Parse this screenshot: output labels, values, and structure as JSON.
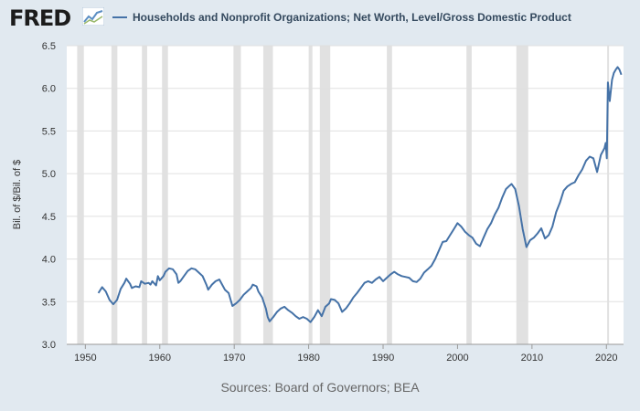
{
  "header": {
    "logo_text": "FRED",
    "logo_icon": "chart-line-icon"
  },
  "chart_data": {
    "type": "line",
    "title": "Households and Nonprofit Organizations; Net Worth, Level/Gross Domestic Product",
    "ylabel": "Bil. of $/Bil. of $",
    "xlabel": "",
    "xlim": [
      1947.5,
      2022.3
    ],
    "ylim": [
      3.0,
      6.5
    ],
    "y_ticks": [
      "3.0",
      "3.5",
      "4.0",
      "4.5",
      "5.0",
      "5.5",
      "6.0",
      "6.5"
    ],
    "x_ticks": [
      "1950",
      "1960",
      "1970",
      "1980",
      "1990",
      "2000",
      "2010",
      "2020"
    ],
    "grid": true,
    "legend_position": "top",
    "series": [
      {
        "name": "Households and Nonprofit Organizations; Net Worth, Level/Gross Domestic Product",
        "color": "#4572a7",
        "points": [
          [
            1951.75,
            3.6
          ],
          [
            1952.25,
            3.67
          ],
          [
            1952.75,
            3.62
          ],
          [
            1953.25,
            3.52
          ],
          [
            1953.75,
            3.47
          ],
          [
            1954.25,
            3.52
          ],
          [
            1954.75,
            3.65
          ],
          [
            1955.25,
            3.72
          ],
          [
            1955.5,
            3.77
          ],
          [
            1956.0,
            3.71
          ],
          [
            1956.25,
            3.66
          ],
          [
            1956.75,
            3.68
          ],
          [
            1957.25,
            3.67
          ],
          [
            1957.5,
            3.74
          ],
          [
            1958.0,
            3.71
          ],
          [
            1958.5,
            3.72
          ],
          [
            1958.75,
            3.7
          ],
          [
            1959.0,
            3.74
          ],
          [
            1959.5,
            3.69
          ],
          [
            1959.75,
            3.8
          ],
          [
            1960.0,
            3.75
          ],
          [
            1960.5,
            3.8
          ],
          [
            1960.75,
            3.85
          ],
          [
            1961.25,
            3.89
          ],
          [
            1961.75,
            3.88
          ],
          [
            1962.25,
            3.82
          ],
          [
            1962.5,
            3.72
          ],
          [
            1962.75,
            3.74
          ],
          [
            1963.25,
            3.8
          ],
          [
            1963.75,
            3.86
          ],
          [
            1964.25,
            3.89
          ],
          [
            1964.75,
            3.88
          ],
          [
            1965.25,
            3.84
          ],
          [
            1965.75,
            3.8
          ],
          [
            1966.25,
            3.7
          ],
          [
            1966.5,
            3.64
          ],
          [
            1967.0,
            3.7
          ],
          [
            1967.5,
            3.74
          ],
          [
            1968.0,
            3.76
          ],
          [
            1968.5,
            3.68
          ],
          [
            1968.75,
            3.64
          ],
          [
            1969.25,
            3.6
          ],
          [
            1969.75,
            3.45
          ],
          [
            1970.25,
            3.48
          ],
          [
            1970.75,
            3.52
          ],
          [
            1971.25,
            3.58
          ],
          [
            1971.75,
            3.62
          ],
          [
            1972.25,
            3.66
          ],
          [
            1972.5,
            3.7
          ],
          [
            1973.0,
            3.68
          ],
          [
            1973.25,
            3.62
          ],
          [
            1973.75,
            3.55
          ],
          [
            1974.25,
            3.42
          ],
          [
            1974.5,
            3.32
          ],
          [
            1974.75,
            3.27
          ],
          [
            1975.25,
            3.32
          ],
          [
            1975.75,
            3.38
          ],
          [
            1976.25,
            3.42
          ],
          [
            1976.75,
            3.44
          ],
          [
            1977.25,
            3.4
          ],
          [
            1977.75,
            3.37
          ],
          [
            1978.25,
            3.33
          ],
          [
            1978.75,
            3.3
          ],
          [
            1979.25,
            3.32
          ],
          [
            1979.75,
            3.3
          ],
          [
            1980.25,
            3.26
          ],
          [
            1980.75,
            3.32
          ],
          [
            1981.25,
            3.4
          ],
          [
            1981.75,
            3.33
          ],
          [
            1982.25,
            3.44
          ],
          [
            1982.75,
            3.48
          ],
          [
            1983.0,
            3.53
          ],
          [
            1983.5,
            3.52
          ],
          [
            1984.0,
            3.48
          ],
          [
            1984.5,
            3.38
          ],
          [
            1985.0,
            3.42
          ],
          [
            1985.5,
            3.48
          ],
          [
            1986.0,
            3.55
          ],
          [
            1986.5,
            3.6
          ],
          [
            1987.0,
            3.66
          ],
          [
            1987.5,
            3.72
          ],
          [
            1988.0,
            3.74
          ],
          [
            1988.5,
            3.72
          ],
          [
            1989.0,
            3.76
          ],
          [
            1989.5,
            3.79
          ],
          [
            1990.0,
            3.74
          ],
          [
            1990.5,
            3.78
          ],
          [
            1991.0,
            3.82
          ],
          [
            1991.5,
            3.85
          ],
          [
            1992.0,
            3.82
          ],
          [
            1992.5,
            3.8
          ],
          [
            1993.0,
            3.79
          ],
          [
            1993.5,
            3.78
          ],
          [
            1994.0,
            3.74
          ],
          [
            1994.5,
            3.73
          ],
          [
            1995.0,
            3.77
          ],
          [
            1995.5,
            3.84
          ],
          [
            1996.0,
            3.88
          ],
          [
            1996.5,
            3.92
          ],
          [
            1997.0,
            4.0
          ],
          [
            1997.5,
            4.1
          ],
          [
            1998.0,
            4.2
          ],
          [
            1998.5,
            4.21
          ],
          [
            1999.0,
            4.28
          ],
          [
            1999.5,
            4.35
          ],
          [
            2000.0,
            4.42
          ],
          [
            2000.5,
            4.38
          ],
          [
            2001.0,
            4.32
          ],
          [
            2001.5,
            4.28
          ],
          [
            2002.0,
            4.25
          ],
          [
            2002.5,
            4.18
          ],
          [
            2003.0,
            4.15
          ],
          [
            2003.5,
            4.25
          ],
          [
            2004.0,
            4.35
          ],
          [
            2004.5,
            4.42
          ],
          [
            2005.0,
            4.52
          ],
          [
            2005.5,
            4.6
          ],
          [
            2006.0,
            4.72
          ],
          [
            2006.5,
            4.82
          ],
          [
            2007.0,
            4.86
          ],
          [
            2007.25,
            4.88
          ],
          [
            2007.75,
            4.82
          ],
          [
            2008.25,
            4.62
          ],
          [
            2008.75,
            4.35
          ],
          [
            2009.25,
            4.14
          ],
          [
            2009.75,
            4.22
          ],
          [
            2010.25,
            4.25
          ],
          [
            2010.75,
            4.3
          ],
          [
            2011.25,
            4.36
          ],
          [
            2011.75,
            4.24
          ],
          [
            2012.25,
            4.28
          ],
          [
            2012.75,
            4.38
          ],
          [
            2013.25,
            4.55
          ],
          [
            2013.75,
            4.66
          ],
          [
            2014.25,
            4.8
          ],
          [
            2014.75,
            4.85
          ],
          [
            2015.25,
            4.88
          ],
          [
            2015.75,
            4.9
          ],
          [
            2016.25,
            4.98
          ],
          [
            2016.75,
            5.05
          ],
          [
            2017.25,
            5.15
          ],
          [
            2017.75,
            5.2
          ],
          [
            2018.25,
            5.18
          ],
          [
            2018.75,
            5.02
          ],
          [
            2019.25,
            5.22
          ],
          [
            2019.75,
            5.3
          ],
          [
            2019.9,
            5.36
          ],
          [
            2020.05,
            5.18
          ],
          [
            2020.2,
            6.07
          ],
          [
            2020.45,
            5.85
          ],
          [
            2020.75,
            6.1
          ],
          [
            2021.0,
            6.18
          ],
          [
            2021.25,
            6.22
          ],
          [
            2021.5,
            6.25
          ],
          [
            2021.75,
            6.22
          ],
          [
            2022.0,
            6.16
          ]
        ]
      }
    ],
    "recessions": [
      [
        1948.9,
        1949.8
      ],
      [
        1953.5,
        1954.3
      ],
      [
        1957.6,
        1958.3
      ],
      [
        1960.3,
        1961.1
      ],
      [
        1969.9,
        1970.9
      ],
      [
        1973.9,
        1975.2
      ],
      [
        1980.0,
        1980.5
      ],
      [
        1981.5,
        1982.9
      ],
      [
        1990.5,
        1991.2
      ],
      [
        2001.2,
        2001.9
      ],
      [
        2007.9,
        2009.5
      ],
      [
        2020.1,
        2020.3
      ]
    ]
  },
  "footer": {
    "sources": "Sources: Board of Governors; BEA"
  }
}
